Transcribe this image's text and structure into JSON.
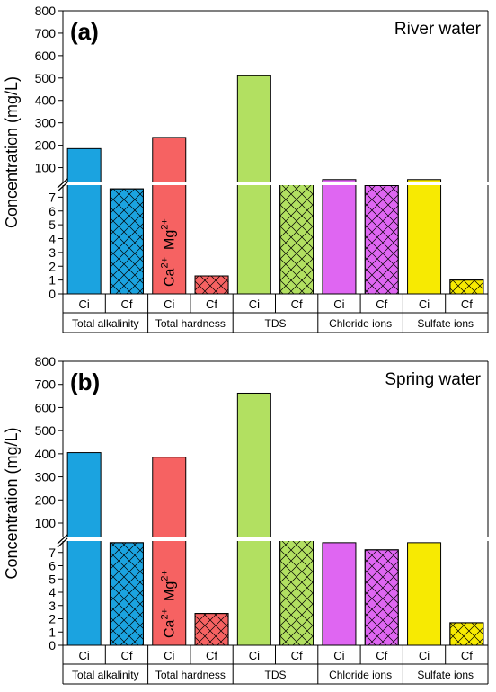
{
  "chart_data": [
    {
      "type": "bar",
      "panel_label": "(a)",
      "title": "River water",
      "ylabel": "Concentration (mg/L)",
      "y_axis": {
        "broken": true,
        "lower_range": [
          0,
          8
        ],
        "upper_range": [
          30,
          800
        ],
        "lower_ticks": [
          "0",
          "1",
          "2",
          "3",
          "4",
          "5",
          "6",
          "7"
        ],
        "upper_ticks": [
          "100",
          "200",
          "300",
          "400",
          "500",
          "600",
          "700",
          "800"
        ]
      },
      "groups": [
        "Total alkalinity",
        "Total hardness",
        "TDS",
        "Chloride ions",
        "Sulfate ions"
      ],
      "categories": [
        "Ci",
        "Cf"
      ],
      "series": [
        {
          "name": "Total alkalinity",
          "color": "#1ba3e0",
          "values": [
            185,
            7.6
          ]
        },
        {
          "name": "Total hardness",
          "color": "#f66262",
          "values": [
            235,
            1.3
          ]
        },
        {
          "name": "TDS",
          "color": "#b2e061",
          "values": [
            510,
            33
          ]
        },
        {
          "name": "Chloride ions",
          "color": "#df66f2",
          "values": [
            47,
            20
          ]
        },
        {
          "name": "Sulfate ions",
          "color": "#f7ea02",
          "values": [
            47,
            1.0
          ]
        }
      ],
      "annotation": "Ca2+  Mg2+",
      "annotation_parts": {
        "ca": "Ca",
        "ca_sup": "2+",
        "mg": "Mg",
        "mg_sup": "2+"
      }
    },
    {
      "type": "bar",
      "panel_label": "(b)",
      "title": "Spring water",
      "ylabel": "Concentration (mg/L)",
      "y_axis": {
        "broken": true,
        "lower_range": [
          0,
          8
        ],
        "upper_range": [
          30,
          800
        ],
        "lower_ticks": [
          "0",
          "1",
          "2",
          "3",
          "4",
          "5",
          "6",
          "7"
        ],
        "upper_ticks": [
          "100",
          "200",
          "300",
          "400",
          "500",
          "600",
          "700",
          "800"
        ]
      },
      "groups": [
        "Total alkalinity",
        "Total hardness",
        "TDS",
        "Chloride ions",
        "Sulfate ions"
      ],
      "categories": [
        "Ci",
        "Cf"
      ],
      "series": [
        {
          "name": "Total alkalinity",
          "color": "#1ba3e0",
          "values": [
            405,
            15
          ]
        },
        {
          "name": "Total hardness",
          "color": "#f66262",
          "values": [
            385,
            2.4
          ]
        },
        {
          "name": "TDS",
          "color": "#b2e061",
          "values": [
            662,
            35
          ]
        },
        {
          "name": "Chloride ions",
          "color": "#df66f2",
          "values": [
            15,
            7.2
          ]
        },
        {
          "name": "Sulfate ions",
          "color": "#f7ea02",
          "values": [
            15,
            1.7
          ]
        }
      ],
      "annotation": "Ca2+  Mg2+",
      "annotation_parts": {
        "ca": "Ca",
        "ca_sup": "2+",
        "mg": "Mg",
        "mg_sup": "2+"
      }
    }
  ]
}
